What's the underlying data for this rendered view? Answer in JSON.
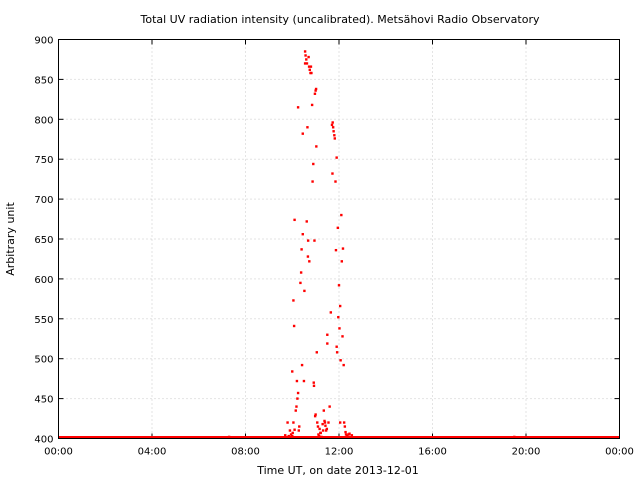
{
  "chart_data": {
    "type": "scatter",
    "title": "Total UV radiation intensity (uncalibrated). Metsähovi Radio Observatory",
    "xlabel": "Time UT, on date 2013-12-01",
    "ylabel": "Arbitrary unit",
    "xlim": [
      0,
      24
    ],
    "ylim": [
      400,
      900
    ],
    "xticks": [
      0,
      4,
      8,
      12,
      16,
      20,
      24
    ],
    "xtick_labels": [
      "00:00",
      "04:00",
      "08:00",
      "12:00",
      "16:00",
      "20:00",
      "00:00"
    ],
    "yticks": [
      400,
      450,
      500,
      550,
      600,
      650,
      700,
      750,
      800,
      850,
      900
    ],
    "grid": true,
    "point_color": "#ff0000",
    "baseline": {
      "value": 400,
      "x_range": [
        0,
        24
      ]
    },
    "series": [
      {
        "points": [
          [
            7.3,
            402
          ],
          [
            9.6,
            401
          ],
          [
            9.7,
            404
          ],
          [
            9.8,
            420
          ],
          [
            9.85,
            403
          ],
          [
            9.9,
            410
          ],
          [
            9.95,
            405
          ],
          [
            10.0,
            403
          ],
          [
            10.02,
            407
          ],
          [
            10.05,
            420
          ],
          [
            10.1,
            411
          ],
          [
            10.0,
            484
          ],
          [
            10.05,
            573
          ],
          [
            10.08,
            541
          ],
          [
            10.1,
            674
          ],
          [
            10.15,
            435
          ],
          [
            10.18,
            440
          ],
          [
            10.2,
            472
          ],
          [
            10.22,
            450
          ],
          [
            10.25,
            457
          ],
          [
            10.28,
            410
          ],
          [
            10.3,
            415
          ],
          [
            10.25,
            815
          ],
          [
            10.35,
            595
          ],
          [
            10.38,
            608
          ],
          [
            10.4,
            637
          ],
          [
            10.42,
            492
          ],
          [
            10.45,
            656
          ],
          [
            10.45,
            782
          ],
          [
            10.5,
            472
          ],
          [
            10.52,
            585
          ],
          [
            10.55,
            870
          ],
          [
            10.55,
            885
          ],
          [
            10.57,
            880
          ],
          [
            10.6,
            875
          ],
          [
            10.62,
            672
          ],
          [
            10.63,
            870
          ],
          [
            10.65,
            790
          ],
          [
            10.67,
            628
          ],
          [
            10.68,
            648
          ],
          [
            10.7,
            878
          ],
          [
            10.72,
            866
          ],
          [
            10.73,
            622
          ],
          [
            10.75,
            862
          ],
          [
            10.78,
            858
          ],
          [
            10.8,
            866
          ],
          [
            10.82,
            858
          ],
          [
            10.85,
            818
          ],
          [
            10.87,
            722
          ],
          [
            10.9,
            744
          ],
          [
            10.92,
            470
          ],
          [
            10.93,
            466
          ],
          [
            10.95,
            648
          ],
          [
            10.97,
            832
          ],
          [
            11.0,
            836
          ],
          [
            11.02,
            838
          ],
          [
            11.03,
            766
          ],
          [
            11.05,
            508
          ],
          [
            11.07,
            420
          ],
          [
            11.1,
            415
          ],
          [
            11.12,
            405
          ],
          [
            11.15,
            403
          ],
          [
            11.17,
            412
          ],
          [
            11.2,
            407
          ],
          [
            11.22,
            407
          ],
          [
            11.25,
            402
          ],
          [
            11.0,
            430
          ],
          [
            10.98,
            428
          ],
          [
            11.3,
            418
          ],
          [
            11.32,
            410
          ],
          [
            11.35,
            435
          ],
          [
            11.38,
            422
          ],
          [
            11.4,
            420
          ],
          [
            11.42,
            416
          ],
          [
            11.45,
            410
          ],
          [
            11.48,
            412
          ],
          [
            11.5,
            530
          ],
          [
            11.5,
            519
          ],
          [
            11.55,
            420
          ],
          [
            11.6,
            440
          ],
          [
            11.65,
            558
          ],
          [
            11.7,
            793
          ],
          [
            11.72,
            732
          ],
          [
            11.73,
            796
          ],
          [
            11.75,
            790
          ],
          [
            11.77,
            785
          ],
          [
            11.8,
            780
          ],
          [
            11.82,
            776
          ],
          [
            11.85,
            722
          ],
          [
            11.87,
            636
          ],
          [
            11.9,
            752
          ],
          [
            11.9,
            515
          ],
          [
            11.92,
            508
          ],
          [
            11.95,
            664
          ],
          [
            11.97,
            552
          ],
          [
            12.0,
            592
          ],
          [
            12.02,
            538
          ],
          [
            12.05,
            566
          ],
          [
            12.07,
            498
          ],
          [
            12.1,
            680
          ],
          [
            12.12,
            622
          ],
          [
            12.15,
            528
          ],
          [
            12.17,
            638
          ],
          [
            12.2,
            492
          ],
          [
            12.22,
            420
          ],
          [
            12.05,
            420
          ],
          [
            12.25,
            415
          ],
          [
            12.28,
            408
          ],
          [
            12.3,
            405
          ],
          [
            12.35,
            403
          ],
          [
            12.4,
            405
          ],
          [
            12.45,
            406
          ],
          [
            12.5,
            402
          ],
          [
            12.55,
            404
          ],
          [
            19.5,
            402
          ]
        ]
      }
    ]
  }
}
